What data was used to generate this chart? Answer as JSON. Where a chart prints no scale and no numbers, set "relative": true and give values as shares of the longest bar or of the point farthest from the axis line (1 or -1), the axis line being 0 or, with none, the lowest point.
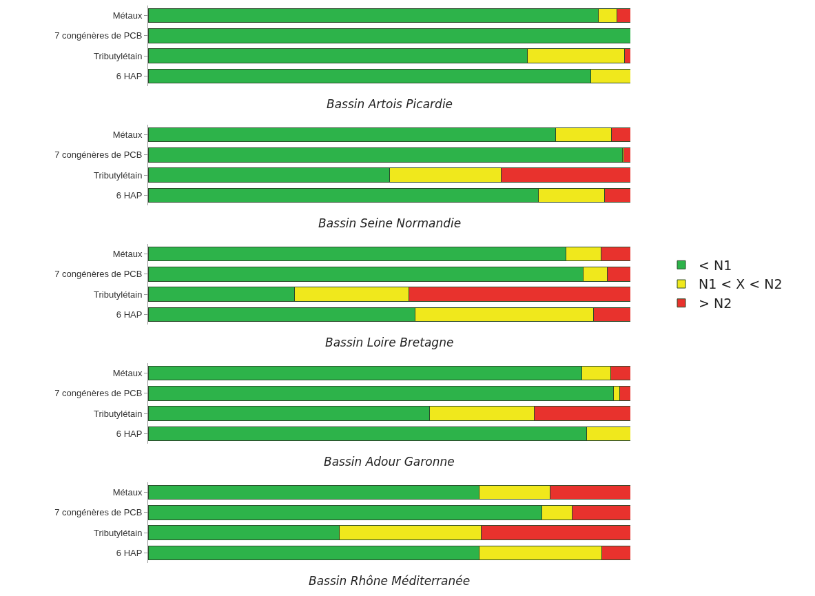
{
  "chart_data": [
    {
      "type": "bar",
      "orientation": "horizontal",
      "stacked": true,
      "relative": true,
      "title": "Bassin Artois Picardie",
      "categories": [
        "Métaux",
        "7 congénères de PCB",
        "Tributylétain",
        "6 HAP"
      ],
      "series": [
        {
          "color": "#2db34a",
          "values": [
            0.933,
            1,
            0.786,
            0.918
          ]
        },
        {
          "color": "#f0e81c",
          "values": [
            0.039,
            0,
            0.202,
            0.082
          ]
        },
        {
          "color": "#e8322d",
          "values": [
            0.028,
            0,
            0.012,
            0
          ]
        }
      ]
    },
    {
      "type": "bar",
      "orientation": "horizontal",
      "stacked": true,
      "relative": true,
      "title": "Bassin Seine Normandie",
      "categories": [
        "Métaux",
        "7 congénères de PCB",
        "Tributylétain",
        "6 HAP"
      ],
      "series": [
        {
          "color": "#2db34a",
          "values": [
            0.845,
            0.984,
            0.501,
            0.809
          ]
        },
        {
          "color": "#f0e81c",
          "values": [
            0.116,
            0.003,
            0.231,
            0.137
          ]
        },
        {
          "color": "#e8322d",
          "values": [
            0.039,
            0.013,
            0.268,
            0.054
          ]
        }
      ]
    },
    {
      "type": "bar",
      "orientation": "horizontal",
      "stacked": true,
      "relative": true,
      "legend": "right",
      "title": "Bassin Loire Bretagne",
      "categories": [
        "Métaux",
        "7 congénères de PCB",
        "Tributylétain",
        "6 HAP"
      ],
      "series": [
        {
          "name": "< N1",
          "color": "#2db34a",
          "values": [
            0.866,
            0.902,
            0.304,
            0.553
          ]
        },
        {
          "name": "N1 < X < N2",
          "color": "#f0e81c",
          "values": [
            0.073,
            0.05,
            0.236,
            0.371
          ]
        },
        {
          "name": "> N2",
          "color": "#e8322d",
          "values": [
            0.061,
            0.048,
            0.46,
            0.076
          ]
        }
      ]
    },
    {
      "type": "bar",
      "orientation": "horizontal",
      "stacked": true,
      "relative": true,
      "title": "Bassin Adour Garonne",
      "categories": [
        "Métaux",
        "7 congénères de PCB",
        "Tributylétain",
        "6 HAP"
      ],
      "series": [
        {
          "color": "#2db34a",
          "values": [
            0.899,
            0.965,
            0.583,
            0.909
          ]
        },
        {
          "color": "#f0e81c",
          "values": [
            0.06,
            0.013,
            0.217,
            0.091
          ]
        },
        {
          "color": "#e8322d",
          "values": [
            0.041,
            0.022,
            0.2,
            0
          ]
        }
      ]
    },
    {
      "type": "bar",
      "orientation": "horizontal",
      "stacked": true,
      "relative": true,
      "title": "Bassin Rhône Méditerranée",
      "categories": [
        "Métaux",
        "7 congénères de PCB",
        "Tributylétain",
        "6 HAP"
      ],
      "series": [
        {
          "color": "#2db34a",
          "values": [
            0.687,
            0.816,
            0.397,
            0.687
          ]
        },
        {
          "color": "#f0e81c",
          "values": [
            0.146,
            0.063,
            0.293,
            0.254
          ]
        },
        {
          "color": "#e8322d",
          "values": [
            0.167,
            0.121,
            0.31,
            0.059
          ]
        }
      ]
    }
  ]
}
